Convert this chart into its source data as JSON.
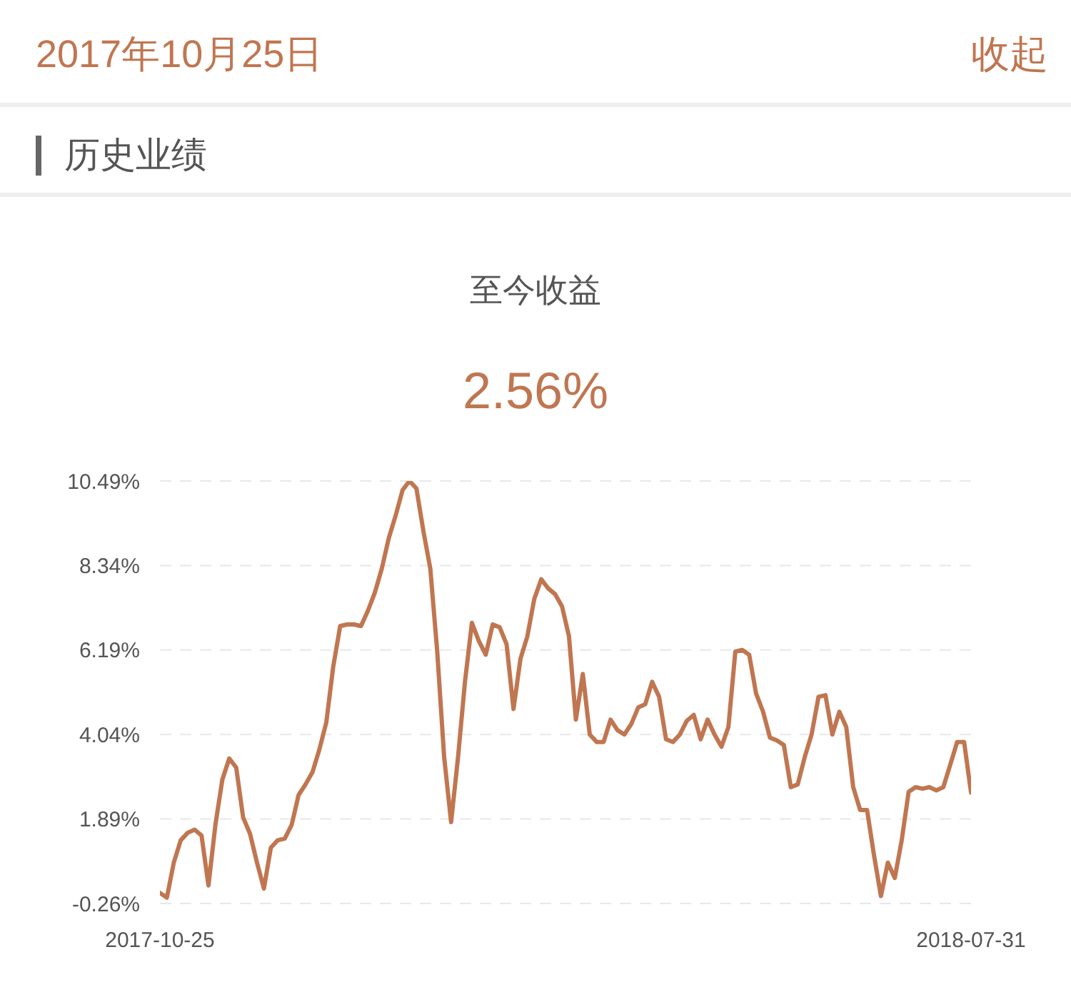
{
  "chart_data": {
    "type": "line",
    "title": "至今收益",
    "subtitle": "2.56%",
    "annotations": [
      "2017年10月25日",
      "收起",
      "历史业绩"
    ],
    "categories": [
      "2017-10-25",
      null,
      null,
      null,
      null,
      null,
      null,
      null,
      null,
      null,
      null,
      null,
      null,
      null,
      null,
      null,
      null,
      null,
      null,
      null,
      null,
      null,
      null,
      null,
      null,
      null,
      null,
      null,
      null,
      null,
      null,
      null,
      null,
      null,
      null,
      null,
      null,
      null,
      null,
      null,
      null,
      null,
      null,
      null,
      null,
      null,
      null,
      null,
      null,
      null,
      null,
      null,
      null,
      null,
      null,
      null,
      null,
      null,
      null,
      null,
      null,
      null,
      null,
      null,
      null,
      null,
      null,
      null,
      null,
      null,
      null,
      null,
      null,
      null,
      null,
      null,
      null,
      null,
      null,
      null,
      null,
      null,
      null,
      null,
      null,
      null,
      null,
      null,
      null,
      null,
      null,
      null,
      null,
      null,
      null,
      null,
      null,
      null,
      null,
      null,
      null,
      null,
      null,
      null,
      null,
      null,
      null,
      null,
      null,
      null,
      null,
      null,
      null,
      null,
      null,
      null,
      null,
      "2018-07-31"
    ],
    "series": [
      {
        "color": "#c07650",
        "values": [
          0.01,
          -0.11,
          0.78,
          1.35,
          1.54,
          1.62,
          1.47,
          0.2,
          1.74,
          2.89,
          3.43,
          3.2,
          1.93,
          1.51,
          0.78,
          0.12,
          1.16,
          1.35,
          1.39,
          1.74,
          2.5,
          2.77,
          3.08,
          3.66,
          4.35,
          5.77,
          6.8,
          6.84,
          6.84,
          6.8,
          7.19,
          7.65,
          8.26,
          9.03,
          9.61,
          10.26,
          10.49,
          10.3,
          9.22,
          8.26,
          6.15,
          3.46,
          1.81,
          3.46,
          5.38,
          6.88,
          6.42,
          6.07,
          6.84,
          6.77,
          6.34,
          4.69,
          5.96,
          6.54,
          7.49,
          7.99,
          7.76,
          7.61,
          7.3,
          6.54,
          4.42,
          5.58,
          4.04,
          3.85,
          3.85,
          4.42,
          4.15,
          4.04,
          4.31,
          4.73,
          4.81,
          5.38,
          5.0,
          3.92,
          3.85,
          4.04,
          4.39,
          4.54,
          3.92,
          4.42,
          4.04,
          3.73,
          4.23,
          6.15,
          6.19,
          6.07,
          5.08,
          4.62,
          3.96,
          3.89,
          3.77,
          2.7,
          2.77,
          3.46,
          4.04,
          5.0,
          5.04,
          4.04,
          4.62,
          4.23,
          2.7,
          2.12,
          2.12,
          0.97,
          -0.07,
          0.78,
          0.39,
          1.35,
          2.58,
          2.7,
          2.66,
          2.7,
          2.62,
          2.7,
          3.27,
          3.85,
          3.85,
          2.56
        ]
      }
    ],
    "ylim": [
      -0.26,
      10.49
    ],
    "yticks": [
      {
        "value": -0.26,
        "label": "-0.26%"
      },
      {
        "value": 1.89,
        "label": "1.89%"
      },
      {
        "value": 4.04,
        "label": "4.04%"
      },
      {
        "value": 6.19,
        "label": "6.19%"
      },
      {
        "value": 8.34,
        "label": "8.34%"
      },
      {
        "value": 10.49,
        "label": "10.49%"
      }
    ],
    "grid": "y",
    "marker": "none",
    "line_style": "solid"
  }
}
